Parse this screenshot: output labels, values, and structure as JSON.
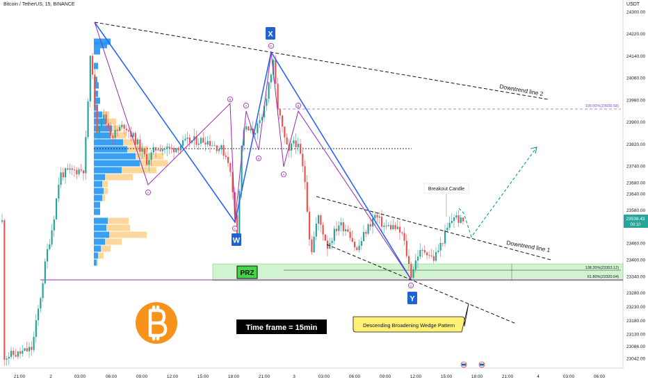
{
  "header": {
    "title": "Bitcoin / TetherUS, 15, BINANCE",
    "unit": "USDT"
  },
  "chart_data": {
    "type": "candlestick",
    "symbol": "Bitcoin / TetherUS",
    "timeframe": "15",
    "exchange": "BINANCE",
    "ylim": [
      22990,
      24340
    ],
    "y_ticks": [
      {
        "label": "24300.00",
        "value": 24300
      },
      {
        "label": "24220.00",
        "value": 24220
      },
      {
        "label": "24140.00",
        "value": 24140
      },
      {
        "label": "24060.00",
        "value": 24060
      },
      {
        "label": "23980.00",
        "value": 23980
      },
      {
        "label": "23900.00",
        "value": 23900
      },
      {
        "label": "23820.00",
        "value": 23820
      },
      {
        "label": "23740.00",
        "value": 23740
      },
      {
        "label": "23680.00",
        "value": 23680
      },
      {
        "label": "23640.00",
        "value": 23640
      },
      {
        "label": "23580.00",
        "value": 23580
      },
      {
        "label": "23460.00",
        "value": 23460
      },
      {
        "label": "23400.00",
        "value": 23400
      },
      {
        "label": "23340.00",
        "value": 23340
      },
      {
        "label": "23280.00",
        "value": 23280
      },
      {
        "label": "23230.00",
        "value": 23230
      },
      {
        "label": "23180.00",
        "value": 23180
      },
      {
        "label": "23130.00",
        "value": 23130
      },
      {
        "label": "23086.00",
        "value": 23086
      },
      {
        "label": "23042.00",
        "value": 23042
      }
    ],
    "x_ticks": [
      "21:00",
      "2",
      "03:00",
      "06:00",
      "09:00",
      "12:00",
      "15:00",
      "18:00",
      "21:00",
      "3",
      "03:00",
      "06:00",
      "09:00",
      "12:00",
      "15:00",
      "18:00",
      "21:00",
      "4",
      "03:00",
      "06:00"
    ],
    "current_price": {
      "value": 23538.43,
      "label": "23538.43",
      "countdown": "00:10"
    },
    "levels": [
      {
        "label": "100.00%(23936.58)",
        "value": 23936.58
      },
      {
        "label": "138.20%(23353.12)",
        "value": 23353.12
      },
      {
        "label": "61.80%(23320.04)",
        "value": 23320.04
      }
    ],
    "points": {
      "X": "X",
      "W": "W",
      "Y": "Y"
    },
    "swing_labels": [
      "A",
      "B",
      "C"
    ],
    "annotations": {
      "downtrend1": "Downtrend line 1",
      "downtrend2": "Downtrend line 2",
      "breakout": "Breakout Candle",
      "prz": "PRZ",
      "timeframe": "Time frame = 15min",
      "wedge": "Descending Broadening Wedge Pattern"
    },
    "colors": {
      "up": "#26a69a",
      "down": "#ef5350",
      "harmonic": "#2962ff",
      "abcd": "#9c27b0",
      "prz_fill": "#c8f2c8",
      "profile_blue": "#2196f3",
      "profile_orange": "#ffb74d",
      "projection": "#089981",
      "bitcoin": "#f7931a"
    }
  }
}
